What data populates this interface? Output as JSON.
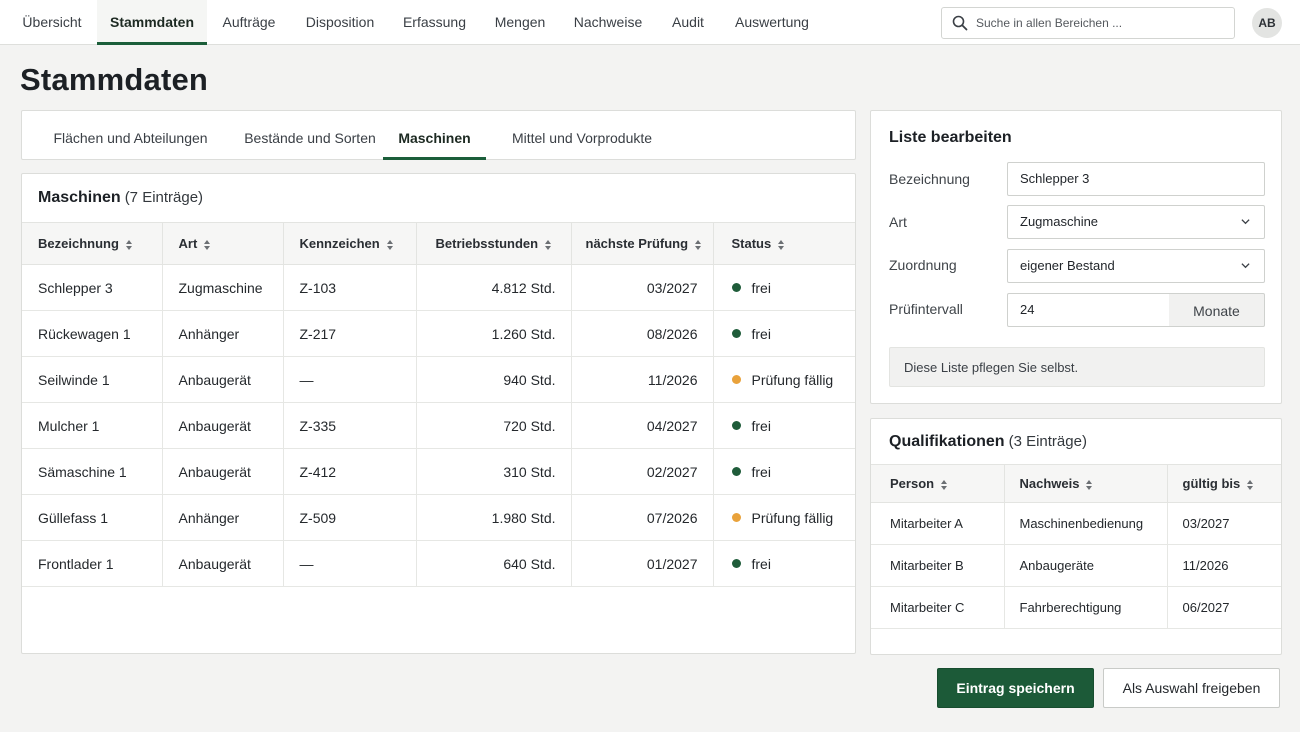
{
  "nav": {
    "tabs": [
      "Übersicht",
      "Stammdaten",
      "Aufträge",
      "Disposition",
      "Erfassung",
      "Mengen",
      "Nachweise",
      "Audit",
      "Auswertung"
    ],
    "active_tab": "Stammdaten",
    "search_placeholder": "Suche in allen Bereichen ...",
    "avatar": "AB"
  },
  "page_title": "Stammdaten",
  "subtabs": {
    "items": [
      "Flächen und Abteilungen",
      "Bestände und Sorten",
      "Maschinen",
      "Mittel und Vorprodukte"
    ],
    "active": "Maschinen"
  },
  "machines": {
    "title": "Maschinen",
    "count": "(7 Einträge)",
    "columns": [
      "Bezeichnung",
      "Art",
      "Kennzeichen",
      "Betriebsstunden",
      "nächste Prüfung",
      "Status"
    ],
    "rows": [
      [
        "Schlepper 3",
        "Zugmaschine",
        "Z-103",
        "4.812 Std.",
        "03/2027",
        "frei"
      ],
      [
        "Rückewagen 1",
        "Anhänger",
        "Z-217",
        "1.260 Std.",
        "08/2026",
        "frei"
      ],
      [
        "Seilwinde 1",
        "Anbaugerät",
        "—",
        "940 Std.",
        "11/2026",
        "Prüfung fällig"
      ],
      [
        "Mulcher 1",
        "Anbaugerät",
        "Z-335",
        "720 Std.",
        "04/2027",
        "frei"
      ],
      [
        "Sämaschine 1",
        "Anbaugerät",
        "Z-412",
        "310 Std.",
        "02/2027",
        "frei"
      ],
      [
        "Güllefass 1",
        "Anhänger",
        "Z-509",
        "1.980 Std.",
        "07/2026",
        "Prüfung fällig"
      ],
      [
        "Frontlader 1",
        "Anbaugerät",
        "—",
        "640 Std.",
        "01/2027",
        "frei"
      ]
    ]
  },
  "status_colors": {
    "frei": "#1f5c3a",
    "Prüfung fällig": "#e9a23b"
  },
  "editor": {
    "title": "Liste bearbeiten",
    "fields": {
      "bezeichnung": {
        "label": "Bezeichnung",
        "value": "Schlepper 3"
      },
      "art": {
        "label": "Art",
        "value": "Zugmaschine"
      },
      "zuordnung": {
        "label": "Zuordnung",
        "value": "eigener Bestand"
      },
      "pruefintervall": {
        "label": "Prüfintervall",
        "value": "24",
        "unit": "Monate"
      }
    },
    "note": "Diese Liste pflegen Sie selbst."
  },
  "qualifications": {
    "title": "Qualifikationen",
    "count": "(3 Einträge)",
    "columns": [
      "Person",
      "Nachweis",
      "gültig bis"
    ],
    "rows": [
      [
        "Mitarbeiter A",
        "Maschinenbedienung",
        "03/2027"
      ],
      [
        "Mitarbeiter B",
        "Anbaugeräte",
        "11/2026"
      ],
      [
        "Mitarbeiter C",
        "Fahrberechtigung",
        "06/2027"
      ]
    ]
  },
  "actions": {
    "save": "Eintrag speichern",
    "release": "Als Auswahl freigeben"
  },
  "colors": {
    "accent": "#1c5a38"
  }
}
